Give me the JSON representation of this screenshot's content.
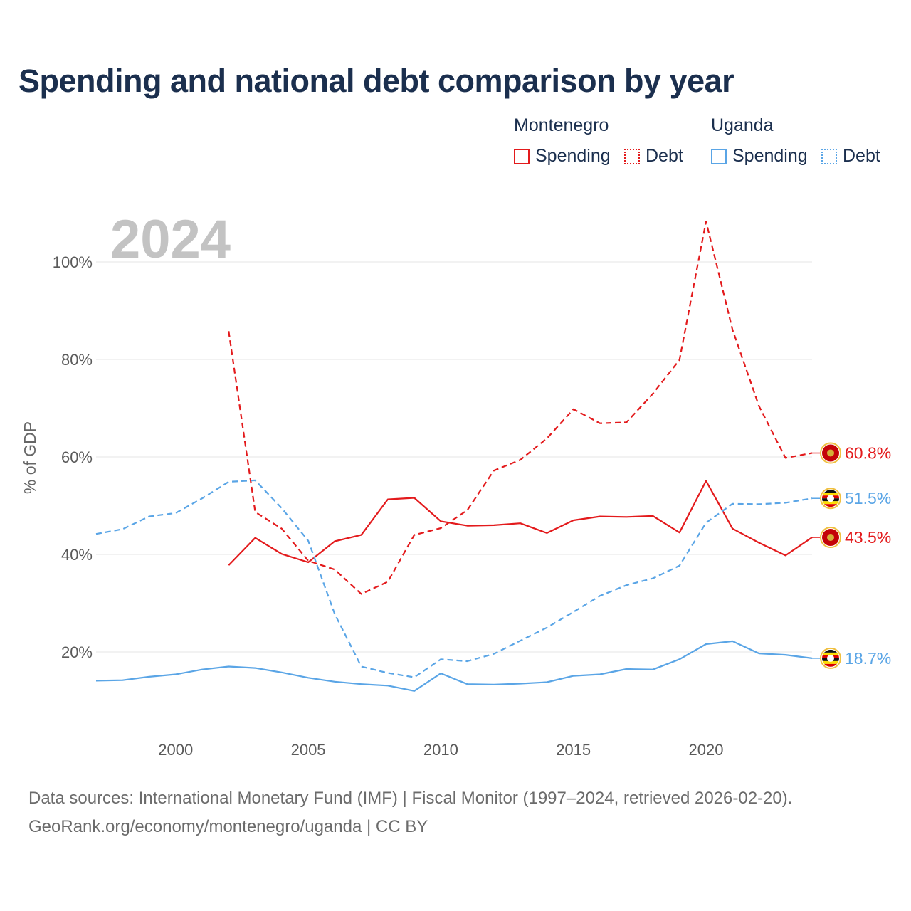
{
  "chart_data": {
    "type": "line",
    "title": "Spending and national debt comparison by year",
    "watermark_year": "2024",
    "ylabel": "% of GDP",
    "xlabel": "",
    "xlim": [
      1997,
      2024
    ],
    "ylim": [
      5,
      112
    ],
    "x_ticks": [
      2000,
      2005,
      2010,
      2015,
      2020
    ],
    "y_ticks": [
      20,
      40,
      60,
      80,
      100
    ],
    "y_tick_labels": [
      "20%",
      "40%",
      "60%",
      "80%",
      "100%"
    ],
    "grid": true,
    "legend": {
      "groups": [
        {
          "name": "Montenegro",
          "spending_label": "Spending",
          "debt_label": "Debt",
          "color": "#e31a1c"
        },
        {
          "name": "Uganda",
          "spending_label": "Spending",
          "debt_label": "Debt",
          "color": "#5aa5e6"
        }
      ],
      "placement": "top-right"
    },
    "series": [
      {
        "name": "Montenegro Spending",
        "country": "Montenegro",
        "kind": "spending",
        "color": "#e31a1c",
        "dash": "solid",
        "x": [
          2002,
          2003,
          2004,
          2005,
          2006,
          2007,
          2008,
          2009,
          2010,
          2011,
          2012,
          2013,
          2014,
          2015,
          2016,
          2017,
          2018,
          2019,
          2020,
          2021,
          2022,
          2023,
          2024
        ],
        "values": [
          37.8,
          43.4,
          40.1,
          38.4,
          42.7,
          44.0,
          51.3,
          51.6,
          46.8,
          45.9,
          46.0,
          46.4,
          44.4,
          47.0,
          47.8,
          47.7,
          47.9,
          44.5,
          55.1,
          45.3,
          42.4,
          39.8,
          43.5
        ],
        "end_label": "43.5%"
      },
      {
        "name": "Montenegro Debt",
        "country": "Montenegro",
        "kind": "debt",
        "color": "#e31a1c",
        "dash": "dashed",
        "x": [
          2002,
          2003,
          2004,
          2005,
          2006,
          2007,
          2008,
          2009,
          2010,
          2011,
          2012,
          2013,
          2014,
          2015,
          2016,
          2017,
          2018,
          2019,
          2020,
          2021,
          2022,
          2023,
          2024
        ],
        "values": [
          85.8,
          48.7,
          45.3,
          38.7,
          36.9,
          31.9,
          34.4,
          44.0,
          45.4,
          49.1,
          57.2,
          59.4,
          63.8,
          69.8,
          66.9,
          67.1,
          73.0,
          79.9,
          108.3,
          86.1,
          70.4,
          59.8,
          60.8
        ],
        "end_label": "60.8%"
      },
      {
        "name": "Uganda Spending",
        "country": "Uganda",
        "kind": "spending",
        "color": "#5aa5e6",
        "dash": "solid",
        "x": [
          1997,
          1998,
          1999,
          2000,
          2001,
          2002,
          2003,
          2004,
          2005,
          2006,
          2007,
          2008,
          2009,
          2010,
          2011,
          2012,
          2013,
          2014,
          2015,
          2016,
          2017,
          2018,
          2019,
          2020,
          2021,
          2022,
          2023,
          2024
        ],
        "values": [
          14.1,
          14.2,
          14.9,
          15.4,
          16.4,
          17.0,
          16.7,
          15.8,
          14.7,
          13.9,
          13.4,
          13.1,
          12.0,
          15.6,
          13.4,
          13.3,
          13.5,
          13.8,
          15.1,
          15.4,
          16.5,
          16.4,
          18.5,
          21.6,
          22.2,
          19.7,
          19.4,
          18.7
        ],
        "end_label": "18.7%"
      },
      {
        "name": "Uganda Debt",
        "country": "Uganda",
        "kind": "debt",
        "color": "#5aa5e6",
        "dash": "dashed",
        "x": [
          1997,
          1998,
          1999,
          2000,
          2001,
          2002,
          2003,
          2004,
          2005,
          2006,
          2007,
          2008,
          2009,
          2010,
          2011,
          2012,
          2013,
          2014,
          2015,
          2016,
          2017,
          2018,
          2019,
          2020,
          2021,
          2022,
          2023,
          2024
        ],
        "values": [
          44.2,
          45.2,
          47.8,
          48.5,
          51.5,
          54.9,
          55.2,
          49.5,
          42.8,
          27.8,
          17.0,
          15.7,
          14.8,
          18.5,
          18.1,
          19.6,
          22.3,
          25.0,
          28.2,
          31.5,
          33.7,
          35.1,
          37.7,
          46.5,
          50.4,
          50.3,
          50.6,
          51.5
        ],
        "end_label": "51.5%"
      }
    ]
  },
  "footer": {
    "source": "Data sources: International Monetary Fund (IMF) | Fiscal Monitor (1997–2024, retrieved 2026-02-20).",
    "credit": "GeoRank.org/economy/montenegro/uganda | CC BY"
  }
}
